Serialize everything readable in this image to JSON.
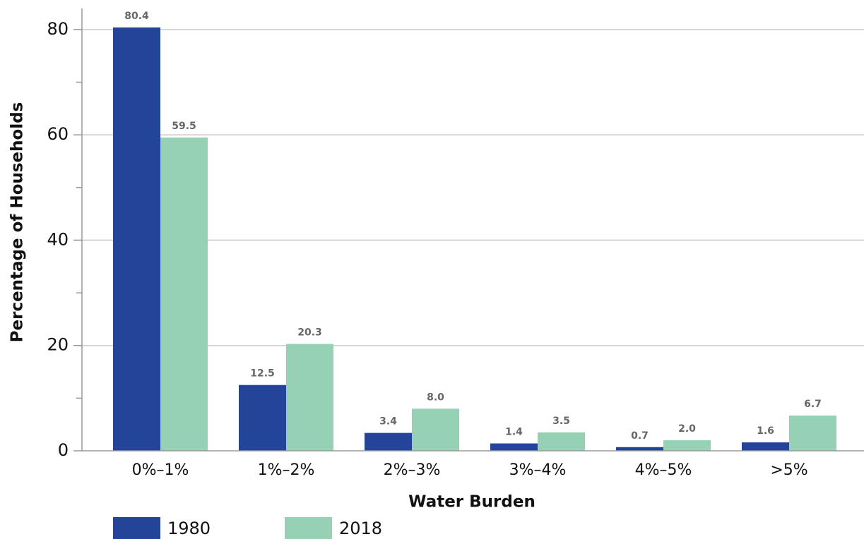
{
  "chart_data": {
    "type": "bar",
    "x_label": "Water Burden",
    "y_label": "Percentage of Households",
    "categories": [
      "0%–1%",
      "1%–2%",
      "2%–3%",
      "3%–4%",
      "4%–5%",
      ">5%"
    ],
    "series": [
      {
        "name": "1980",
        "color": "#24449a",
        "values": [
          80.4,
          12.5,
          3.4,
          1.4,
          0.7,
          1.6
        ],
        "value_labels": [
          "80.4",
          "12.5",
          "3.4",
          "1.4",
          "0.7",
          "1.6"
        ]
      },
      {
        "name": "2018",
        "color": "#96d1b5",
        "values": [
          59.5,
          20.3,
          8.0,
          3.5,
          2.0,
          6.7
        ],
        "value_labels": [
          "59.5",
          "20.3",
          "8.0",
          "3.5",
          "2.0",
          "6.7"
        ]
      }
    ],
    "ylim": [
      0,
      84
    ],
    "yticks": [
      0,
      20,
      40,
      60,
      80
    ],
    "yminorticks": [
      10,
      30,
      50,
      70
    ],
    "grid": true,
    "legend": "bottom-left"
  }
}
